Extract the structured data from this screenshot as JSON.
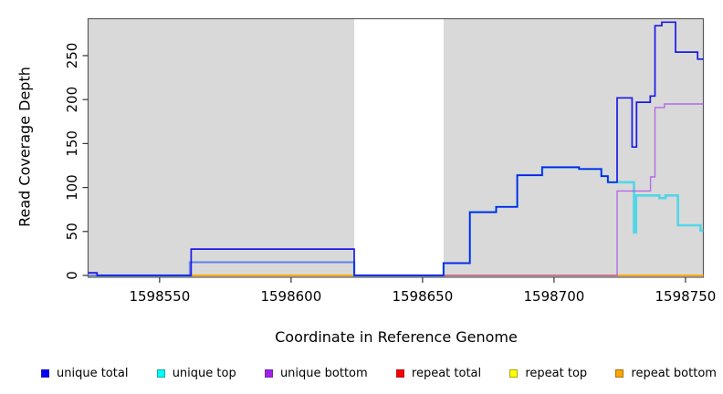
{
  "figure": {
    "xlabel": "Coordinate in Reference Genome",
    "ylabel": "Read Coverage Depth"
  },
  "legend": {
    "items": [
      {
        "label": "unique total",
        "color": "#0000ff"
      },
      {
        "label": "unique top",
        "color": "#00ffff"
      },
      {
        "label": "unique bottom",
        "color": "#a020f0"
      },
      {
        "label": "repeat total",
        "color": "#ff0000"
      },
      {
        "label": "repeat top",
        "color": "#ffff00"
      },
      {
        "label": "repeat bottom",
        "color": "#ffa500"
      }
    ]
  },
  "chart_data": {
    "type": "line",
    "subtype": "step-coverage",
    "title": "",
    "xlabel": "Coordinate in Reference Genome",
    "ylabel": "Read Coverage Depth",
    "xlim": [
      1598522.8,
      1598756.8
    ],
    "ylim": [
      0,
      292.5
    ],
    "x_ticks": [
      1598550,
      1598600,
      1598650,
      1598700,
      1598750
    ],
    "y_ticks": [
      0,
      50,
      100,
      150,
      200,
      250
    ],
    "grid": false,
    "legend_position": "bottom",
    "plot_background": "#d9d9d9",
    "masked_region": {
      "from": 1598624,
      "to": 1598658,
      "color": "#ffffff"
    },
    "draw_order": [
      "repeat total",
      "repeat top",
      "repeat bottom",
      "unique top",
      "unique bottom",
      "unique total"
    ],
    "series": [
      {
        "name": "unique total",
        "color": "#0000ff",
        "line_color": "#1a1ae8",
        "line_width": 1.7,
        "opacity": 1,
        "points": [
          [
            1598522.8,
            3
          ],
          [
            1598526.2,
            0
          ],
          [
            1598562,
            30
          ],
          [
            1598624,
            0
          ],
          [
            1598658,
            14
          ],
          [
            1598668,
            72
          ],
          [
            1598678,
            78
          ],
          [
            1598686,
            114
          ],
          [
            1598695.5,
            123
          ],
          [
            1598709.5,
            121
          ],
          [
            1598718,
            113
          ],
          [
            1598720.5,
            106
          ],
          [
            1598724,
            202
          ],
          [
            1598729.7,
            146
          ],
          [
            1598731.4,
            197
          ],
          [
            1598736.6,
            204
          ],
          [
            1598738.4,
            284
          ],
          [
            1598741,
            288
          ],
          [
            1598746.2,
            254
          ],
          [
            1598754.6,
            246
          ],
          [
            1598756.8,
            246
          ]
        ]
      },
      {
        "name": "unique top",
        "color": "#00ffff",
        "line_color": "#30d5e8",
        "line_width": 2.6,
        "opacity": 0.8,
        "points": [
          [
            1598522.8,
            0
          ],
          [
            1598561.5,
            15
          ],
          [
            1598624,
            0
          ],
          [
            1598658,
            14
          ],
          [
            1598668,
            72
          ],
          [
            1598678,
            78
          ],
          [
            1598686,
            114
          ],
          [
            1598695.5,
            123
          ],
          [
            1598709.5,
            121
          ],
          [
            1598718,
            113
          ],
          [
            1598720.5,
            106
          ],
          [
            1598730.4,
            49
          ],
          [
            1598731.2,
            91
          ],
          [
            1598740.1,
            88
          ],
          [
            1598742.4,
            91
          ],
          [
            1598747.1,
            57
          ],
          [
            1598755.7,
            51
          ],
          [
            1598756.8,
            51
          ]
        ]
      },
      {
        "name": "unique bottom",
        "color": "#a020f0",
        "line_color": "#a647e8",
        "line_width": 1.4,
        "opacity": 0.75,
        "points": [
          [
            1598522.8,
            0
          ],
          [
            1598561.5,
            15
          ],
          [
            1598624,
            0
          ],
          [
            1598724,
            96
          ],
          [
            1598736.7,
            112
          ],
          [
            1598738.4,
            191
          ],
          [
            1598742,
            195
          ],
          [
            1598756.8,
            195
          ]
        ]
      },
      {
        "name": "repeat total",
        "color": "#ff0000",
        "line_color": "#ff0000",
        "line_width": 1.4,
        "opacity": 0.9,
        "points": [
          [
            1598522.8,
            0
          ],
          [
            1598756.8,
            0
          ]
        ]
      },
      {
        "name": "repeat top",
        "color": "#ffff00",
        "line_color": "#ffff00",
        "line_width": 1.4,
        "opacity": 1,
        "points": [
          [
            1598522.8,
            0
          ],
          [
            1598756.8,
            0
          ]
        ]
      },
      {
        "name": "repeat bottom",
        "color": "#ffa500",
        "line_color": "#ffa500",
        "line_width": 1.6,
        "opacity": 1,
        "points": [
          [
            1598522.8,
            0
          ],
          [
            1598756.8,
            0
          ]
        ]
      }
    ]
  }
}
